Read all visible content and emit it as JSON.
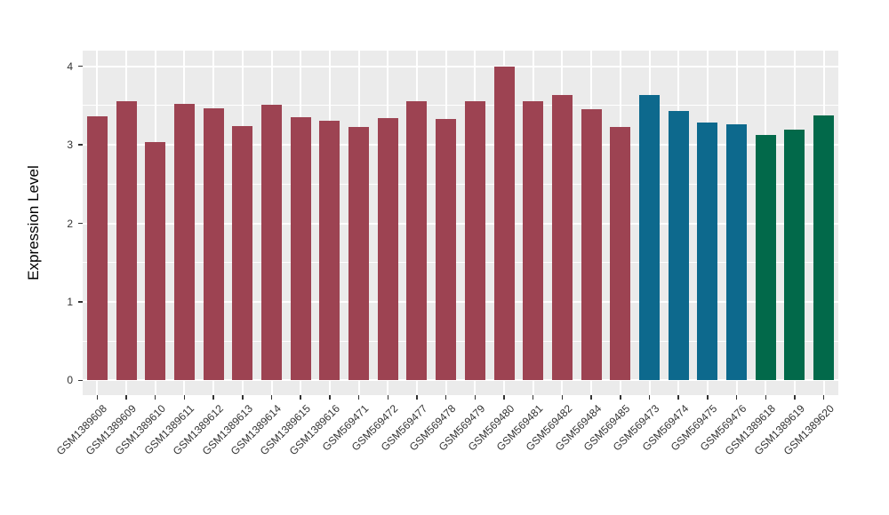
{
  "figure": {
    "background_color": "#ffffff",
    "panel_background_color": "#ebebeb",
    "gridline_color": "#ffffff",
    "axis_text_color": "#333333"
  },
  "chart_data": {
    "type": "bar",
    "title": "",
    "xlabel": "",
    "ylabel": "Expression Level",
    "ylim": [
      0,
      4.2
    ],
    "yticks": [
      0,
      1,
      2,
      3,
      4
    ],
    "grid": "horizontal major+minor, vertical major at category centers",
    "legend_position": "none",
    "categories": [
      "GSM1389608",
      "GSM1389609",
      "GSM1389610",
      "GSM1389611",
      "GSM1389612",
      "GSM1389613",
      "GSM1389614",
      "GSM1389615",
      "GSM1389616",
      "GSM569471",
      "GSM569472",
      "GSM569477",
      "GSM569478",
      "GSM569479",
      "GSM569480",
      "GSM569481",
      "GSM569482",
      "GSM569484",
      "GSM569485",
      "GSM569473",
      "GSM569474",
      "GSM569475",
      "GSM569476",
      "GSM1389618",
      "GSM1389619",
      "GSM1389620"
    ],
    "values": [
      3.36,
      3.56,
      3.03,
      3.52,
      3.46,
      3.24,
      3.51,
      3.35,
      3.31,
      3.23,
      3.34,
      3.56,
      3.33,
      3.56,
      4.0,
      3.56,
      3.64,
      3.45,
      3.23,
      3.64,
      3.43,
      3.28,
      3.26,
      3.13,
      3.19,
      3.38
    ],
    "bar_groups": [
      "maroon",
      "maroon",
      "maroon",
      "maroon",
      "maroon",
      "maroon",
      "maroon",
      "maroon",
      "maroon",
      "maroon",
      "maroon",
      "maroon",
      "maroon",
      "maroon",
      "maroon",
      "maroon",
      "maroon",
      "maroon",
      "maroon",
      "teal",
      "teal",
      "teal",
      "teal",
      "green",
      "green",
      "green"
    ],
    "group_colors": {
      "maroon": "#9d4352",
      "teal": "#0d698d",
      "green": "#02694a"
    }
  }
}
